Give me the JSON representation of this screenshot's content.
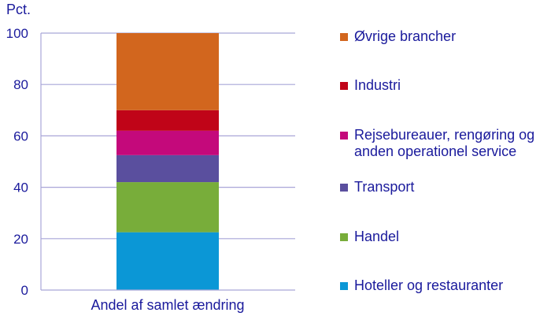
{
  "chart_data": {
    "type": "bar",
    "stacked": true,
    "ylabel": "Pct.",
    "ylim": [
      0,
      100
    ],
    "yticks": [
      0,
      20,
      40,
      60,
      80,
      100
    ],
    "grid": true,
    "categories": [
      "Andel af samlet ændring"
    ],
    "series": [
      {
        "name": "Hoteller og restauranter",
        "color": "#0b97d6",
        "values": [
          22.5
        ]
      },
      {
        "name": "Handel",
        "color": "#78ad3a",
        "values": [
          19.5
        ]
      },
      {
        "name": "Transport",
        "color": "#5a4f9e",
        "values": [
          10.5
        ]
      },
      {
        "name": "Rejsebureauer, rengøring og\nanden operationel service",
        "color": "#c4097b",
        "values": [
          9.5
        ]
      },
      {
        "name": "Industri",
        "color": "#c00418",
        "values": [
          8.0
        ]
      },
      {
        "name": "Øvrige brancher",
        "color": "#d2661e",
        "values": [
          30.0
        ]
      }
    ],
    "legend_position": "right"
  }
}
